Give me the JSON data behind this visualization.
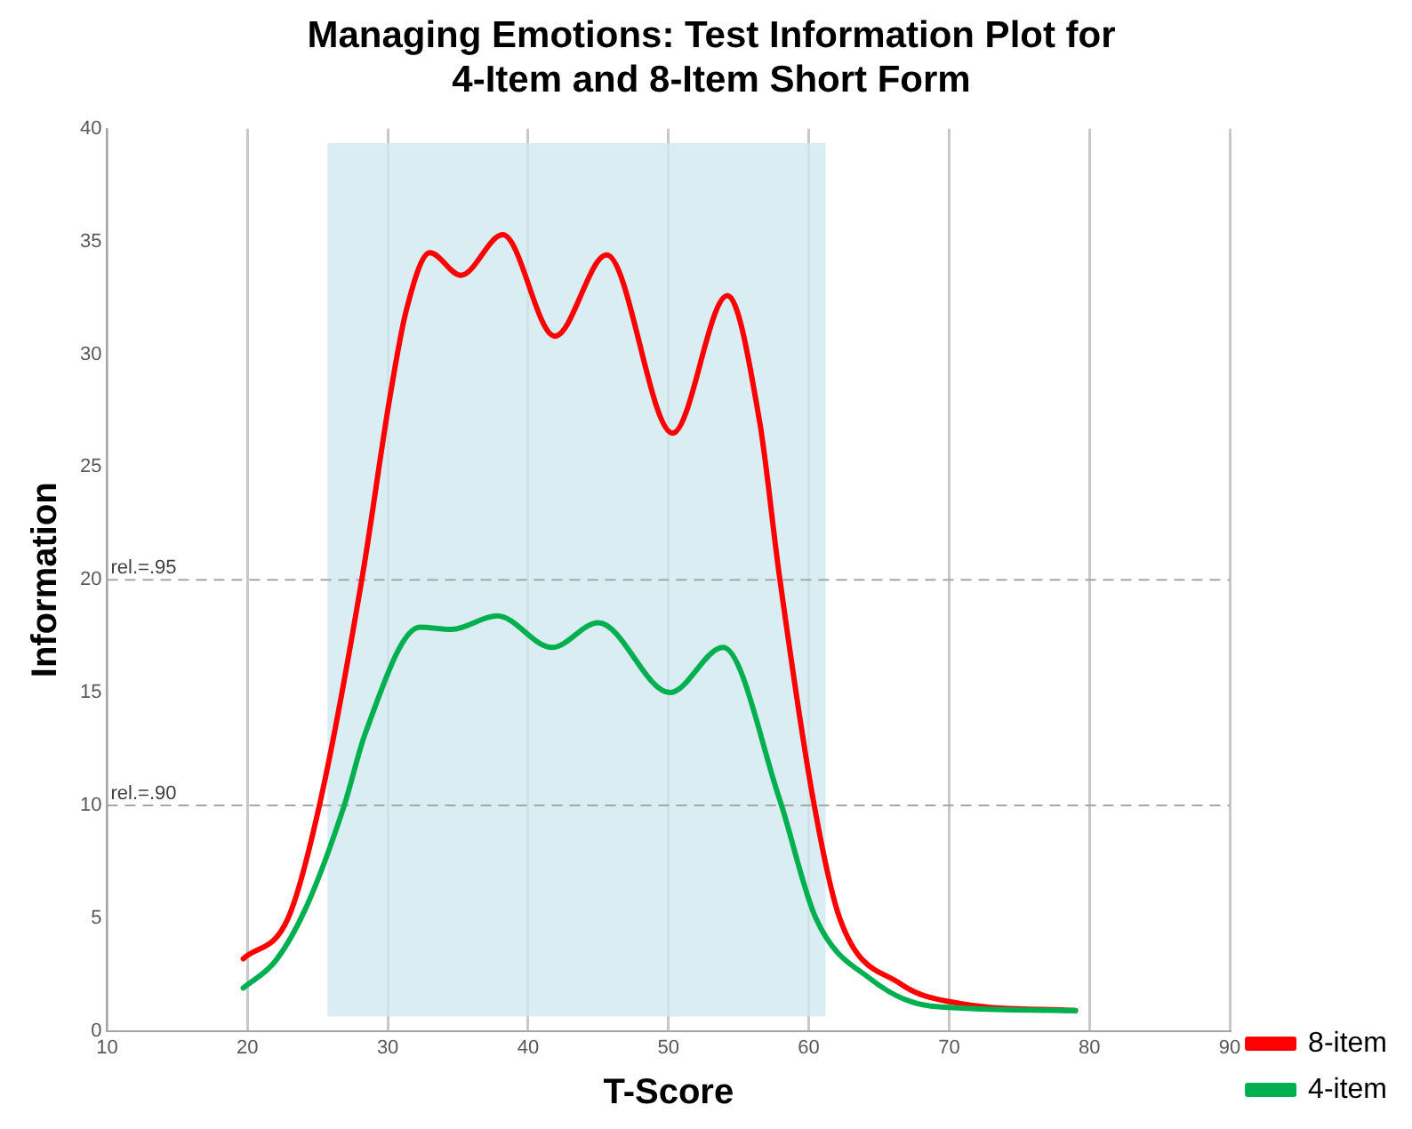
{
  "chart_data": {
    "type": "line",
    "title": "Managing Emotions: Test Information Plot for 4-Item and 8-Item Short Form",
    "xlabel": "T-Score",
    "ylabel": "Information",
    "xlim": [
      10,
      90
    ],
    "xticks": [
      10,
      20,
      30,
      40,
      50,
      60,
      70,
      80,
      90
    ],
    "ylim": [
      0,
      40
    ],
    "yticks": [
      0,
      5,
      10,
      15,
      20,
      25,
      30,
      35,
      40
    ],
    "grid": "x",
    "legend": "bottom right",
    "marker": "none",
    "line_style": "solid",
    "series": [
      {
        "name": "8-item",
        "color": "#ff0000",
        "x": [
          19.7,
          22.9,
          25.2,
          28.2,
          30.1,
          31.3,
          33.0,
          35.2,
          38.2,
          41.9,
          45.6,
          50.3,
          54.2,
          56.5,
          57.9,
          60.3,
          62.2,
          66.5,
          70.9,
          79
        ],
        "values": [
          3.2,
          5.0,
          10.2,
          20.2,
          27.9,
          31.9,
          34.5,
          33.5,
          35.3,
          30.8,
          34.4,
          26.5,
          32.6,
          27,
          20.2,
          10.3,
          5.0,
          2.1,
          1.2,
          0.9
        ]
      },
      {
        "name": "4-item",
        "color": "#00b050",
        "x": [
          19.7,
          22,
          24.2,
          26.9,
          28.4,
          32.3,
          34.5,
          37.8,
          41.7,
          45,
          50.1,
          53.9,
          57.9,
          60.5,
          64.4,
          68.7,
          79
        ],
        "values": [
          1.9,
          3.1,
          5.5,
          10.0,
          13.2,
          17.9,
          17.8,
          18.4,
          17.0,
          18.1,
          15.0,
          17.0,
          10.3,
          5.0,
          2.3,
          1.1,
          0.9
        ]
      }
    ],
    "ref_lines": [
      {
        "axis": "y",
        "value": 20,
        "label": "rel.=.95",
        "color": "#a6a6a6",
        "line_style": "dashed"
      },
      {
        "axis": "y",
        "value": 10,
        "label": "rel.=.90",
        "color": "#a6a6a6",
        "line_style": "dashed"
      }
    ],
    "bands": [
      {
        "axis": "x",
        "from": 25.7,
        "to": 61.2,
        "color": "#cfe8f0"
      }
    ]
  }
}
